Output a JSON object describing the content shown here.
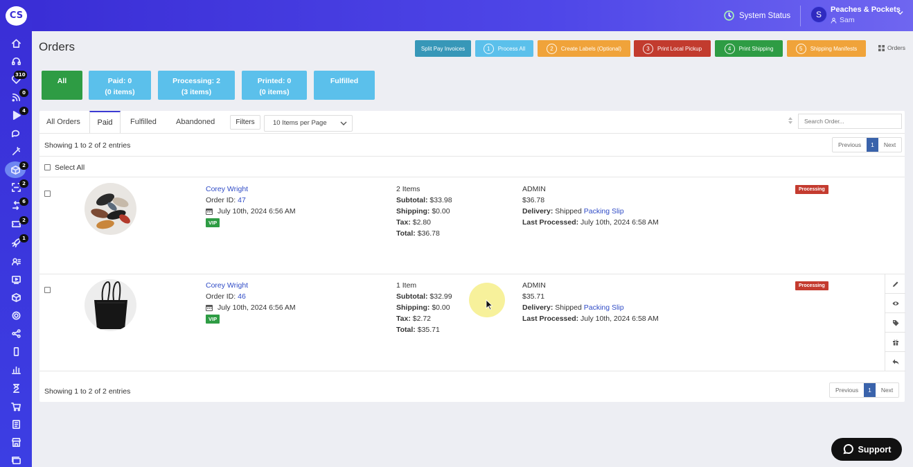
{
  "brand": {
    "logo_text": "CS"
  },
  "sidebar": {
    "items": [
      {
        "icon": "home-icon",
        "badge": ""
      },
      {
        "icon": "headset-icon",
        "badge": ""
      },
      {
        "icon": "heart-icon",
        "badge": "310"
      },
      {
        "icon": "rss-icon",
        "badge": "0"
      },
      {
        "icon": "play-icon",
        "badge": "4"
      },
      {
        "icon": "chat-icon",
        "badge": ""
      },
      {
        "icon": "wand-icon",
        "badge": ""
      },
      {
        "icon": "package-icon",
        "badge": "2",
        "active": true
      },
      {
        "icon": "scan-icon",
        "badge": "2"
      },
      {
        "icon": "return-icon",
        "badge": "6"
      },
      {
        "icon": "ticket-icon",
        "badge": "2"
      },
      {
        "icon": "rocket-icon",
        "badge": "1"
      },
      {
        "icon": "contacts-icon",
        "badge": ""
      },
      {
        "icon": "video-icon",
        "badge": ""
      },
      {
        "icon": "box-icon",
        "badge": ""
      },
      {
        "icon": "settings-icon",
        "badge": ""
      },
      {
        "icon": "share-icon",
        "badge": ""
      },
      {
        "icon": "mobile-icon",
        "badge": ""
      },
      {
        "icon": "chart-icon",
        "badge": ""
      },
      {
        "icon": "hourglass-icon",
        "badge": ""
      },
      {
        "icon": "cart-icon",
        "badge": ""
      },
      {
        "icon": "document-icon",
        "badge": ""
      },
      {
        "icon": "store-icon",
        "badge": ""
      },
      {
        "icon": "cards-icon",
        "badge": ""
      }
    ]
  },
  "header": {
    "system_status": "System Status",
    "account_name": "Peaches & Pockets",
    "account_user": "Sam",
    "avatar_initial": "S"
  },
  "page": {
    "title": "Orders"
  },
  "toolbar": {
    "split_pay": "Split Pay Invoices",
    "steps": [
      {
        "num": "1",
        "label": "Process All",
        "color": "#5bc0eb"
      },
      {
        "num": "2",
        "label": "Create Labels (Optional)",
        "color": "#f0a33a"
      },
      {
        "num": "3",
        "label": "Print Local Pickup",
        "color": "#c23b2e"
      },
      {
        "num": "4",
        "label": "Print Shipping",
        "color": "#2e9c44"
      },
      {
        "num": "5",
        "label": "Shipping Manifests",
        "color": "#f0a33a"
      }
    ],
    "orders_link": "Orders"
  },
  "stats": [
    {
      "line1": "All",
      "line2": "",
      "color": "#2e9c44"
    },
    {
      "line1": "Paid: 0",
      "line2": "(0 items)",
      "color": "#5bc0eb"
    },
    {
      "line1": "Processing: 2",
      "line2": "(3 items)",
      "color": "#5bc0eb"
    },
    {
      "line1": "Printed: 0",
      "line2": "(0 items)",
      "color": "#5bc0eb"
    },
    {
      "line1": "Fulfilled",
      "line2": "",
      "color": "#5bc0eb"
    }
  ],
  "tabs": [
    "All Orders",
    "Paid",
    "Fulfilled",
    "Abandoned"
  ],
  "active_tab": "Paid",
  "filters_label": "Filters",
  "per_page": "10 Items per Page",
  "search_placeholder": "Search Order...",
  "showing_text": "Showing 1 to 2 of 2 entries",
  "pagination": {
    "prev": "Previous",
    "page": "1",
    "next": "Next"
  },
  "select_all": "Select All",
  "orders": [
    {
      "customer": "Corey Wright",
      "order_label": "Order ID:",
      "order_id": "47",
      "date": "July 10th, 2024 6:56 AM",
      "tag": "VIP",
      "items": "2 Items",
      "subtotal_label": "Subtotal:",
      "subtotal": "$33.98",
      "shipping_label": "Shipping:",
      "shipping": "$0.00",
      "tax_label": "Tax:",
      "tax": "$2.80",
      "total_label": "Total:",
      "total": "$36.78",
      "processed_by": "ADMIN",
      "amount": "$36.78",
      "delivery_label": "Delivery:",
      "delivery": "Shipped",
      "packing_slip": "Packing Slip",
      "last_processed_label": "Last Processed:",
      "last_processed": "July 10th, 2024 6:58 AM",
      "status": "Processing",
      "image": "hair-clips"
    },
    {
      "customer": "Corey Wright",
      "order_label": "Order ID:",
      "order_id": "46",
      "date": "July 10th, 2024 6:56 AM",
      "tag": "VIP",
      "items": "1 Item",
      "subtotal_label": "Subtotal:",
      "subtotal": "$32.99",
      "shipping_label": "Shipping:",
      "shipping": "$0.00",
      "tax_label": "Tax:",
      "tax": "$2.72",
      "total_label": "Total:",
      "total": "$35.71",
      "processed_by": "ADMIN",
      "amount": "$35.71",
      "delivery_label": "Delivery:",
      "delivery": "Shipped",
      "packing_slip": "Packing Slip",
      "last_processed_label": "Last Processed:",
      "last_processed": "July 10th, 2024 6:58 AM",
      "status": "Processing",
      "image": "black-tote-bag"
    }
  ],
  "row_actions": [
    "pencil-icon",
    "eye-icon",
    "tag-icon",
    "gift-icon",
    "reply-icon"
  ],
  "support_label": "Support"
}
